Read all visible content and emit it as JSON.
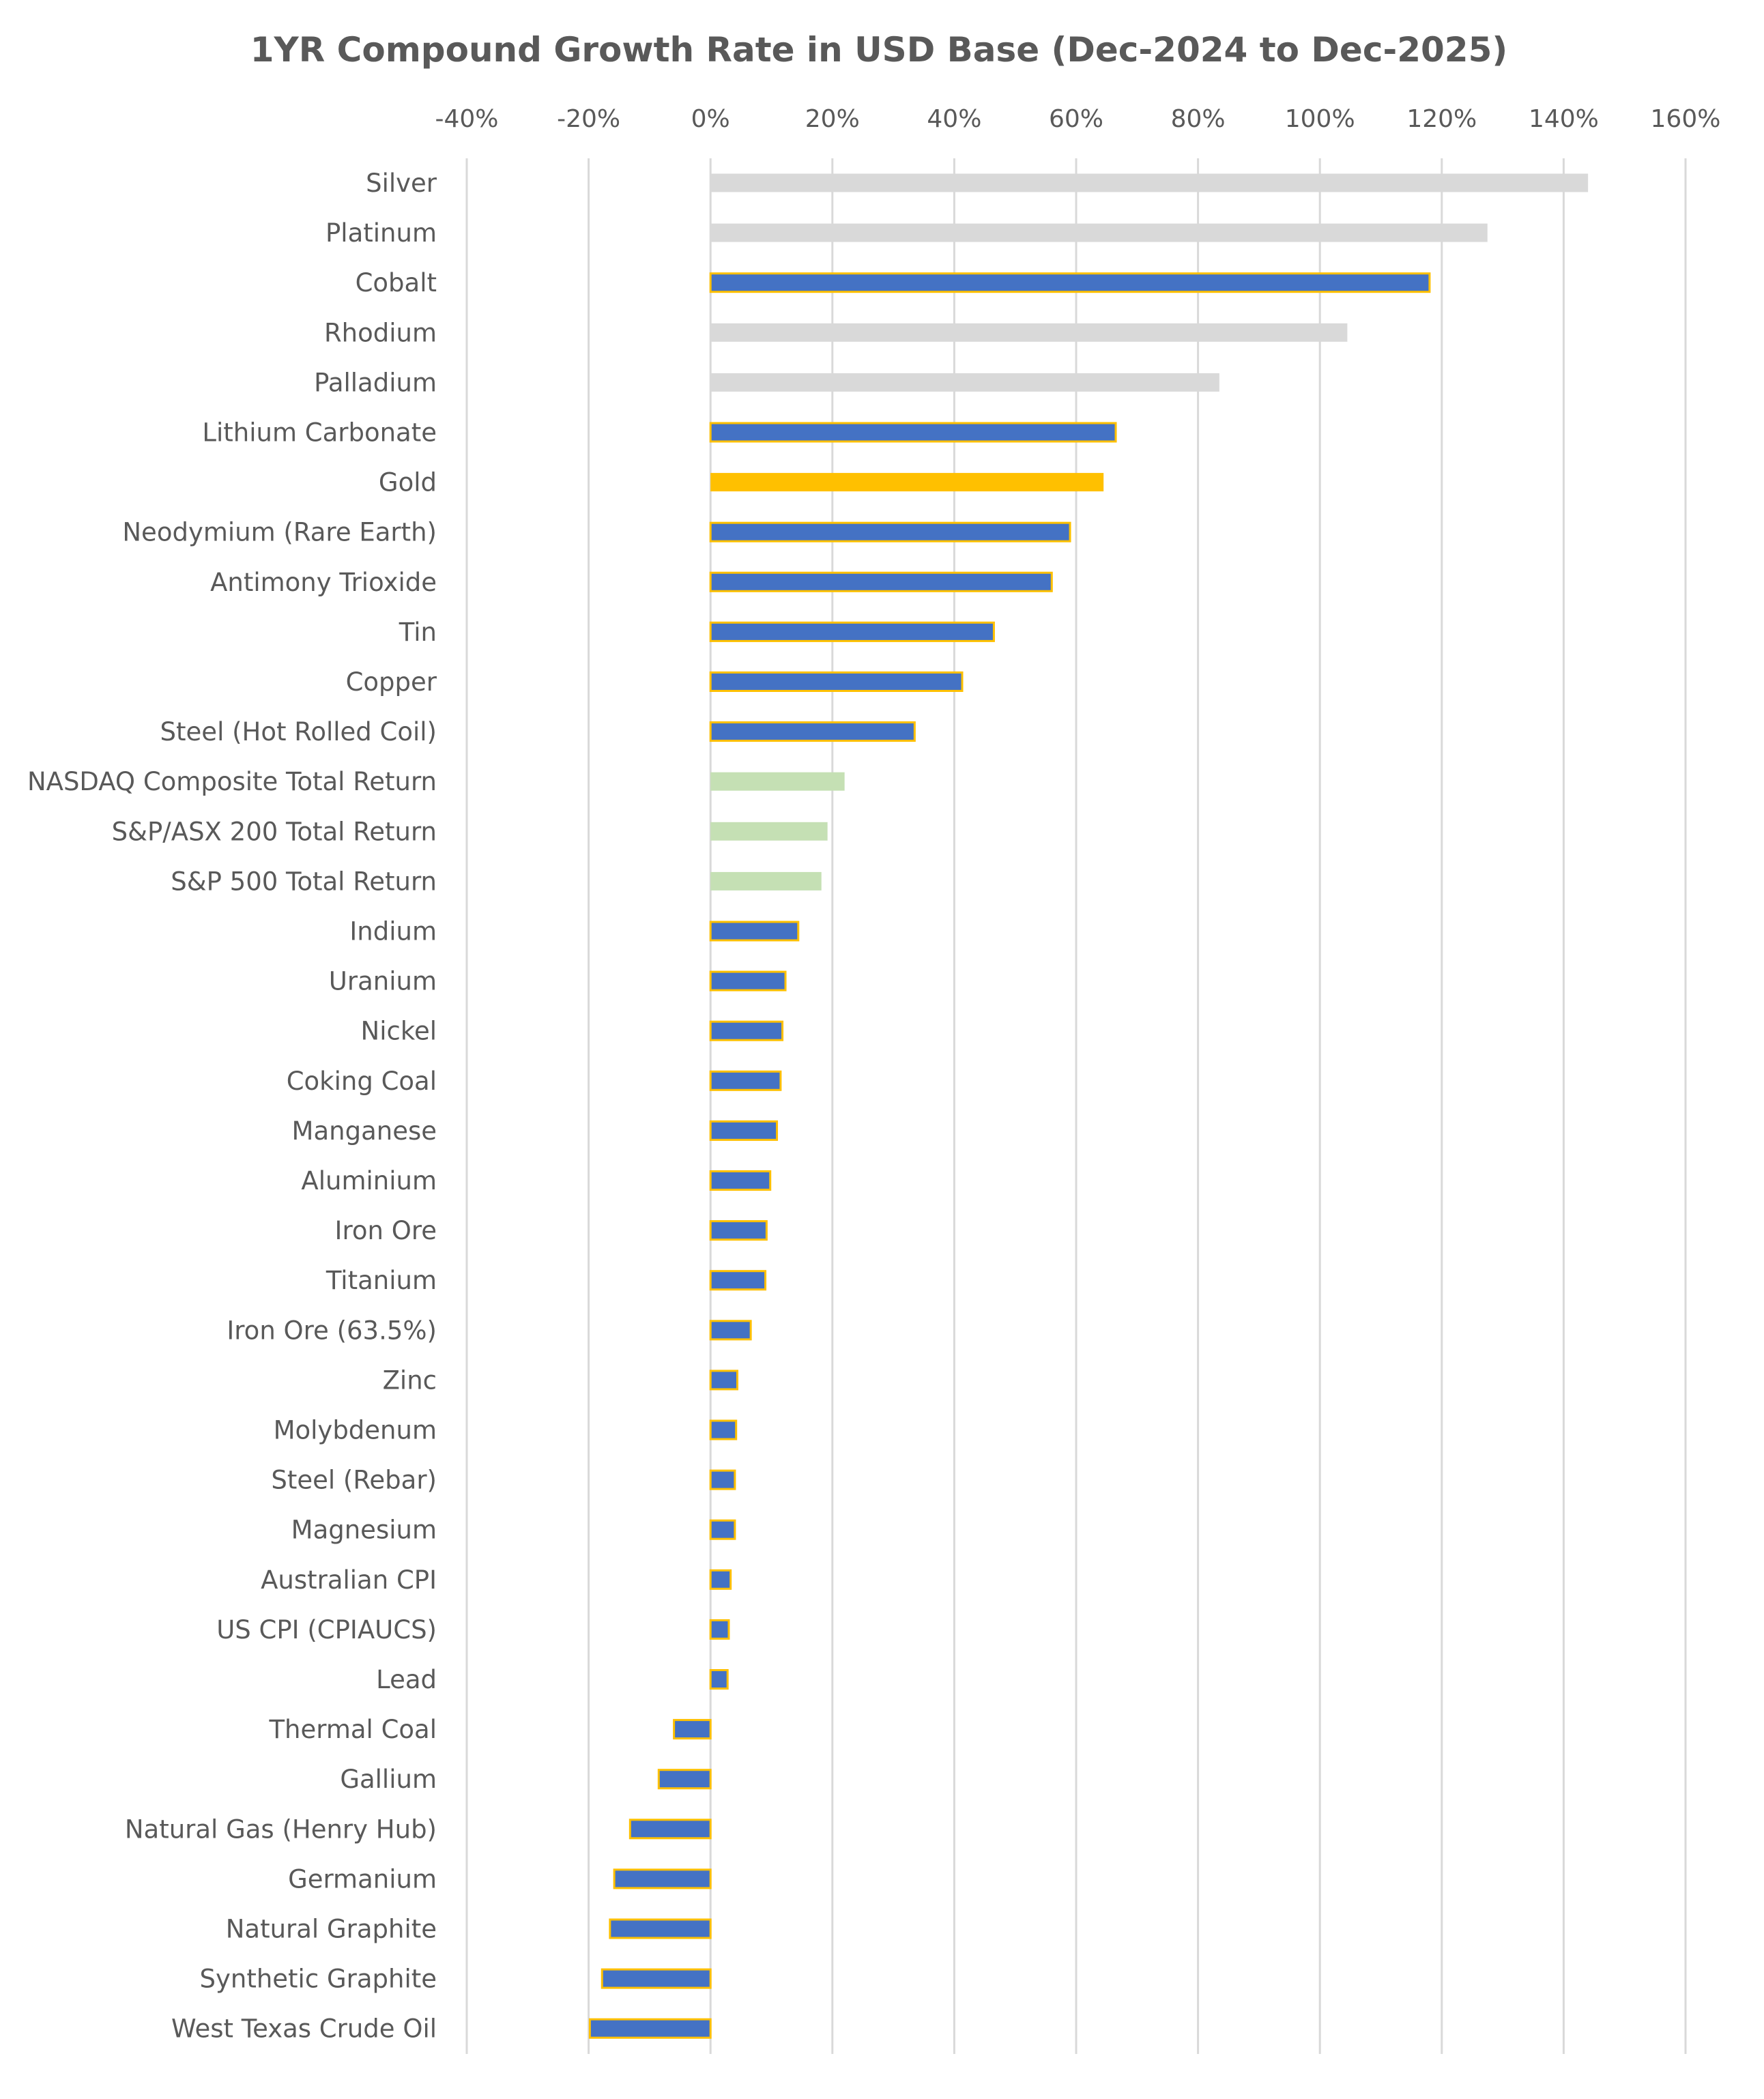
{
  "chart_data": {
    "type": "bar",
    "orientation": "horizontal",
    "title": "1YR Compound Growth Rate in USD Base (Dec-2024 to Dec-2025)",
    "xlabel": "",
    "ylabel": "",
    "xlim": [
      -40,
      160
    ],
    "x_ticks": [
      -40,
      -20,
      0,
      20,
      40,
      60,
      80,
      100,
      120,
      140,
      160
    ],
    "x_tick_labels": [
      "-40%",
      "-20%",
      "0%",
      "20%",
      "40%",
      "60%",
      "80%",
      "100%",
      "120%",
      "140%",
      "160%"
    ],
    "x_axis_position": "top",
    "grid": true,
    "legend": "none",
    "value_unit": "%",
    "colors": {
      "precious_metal": "#d9d9d9",
      "commodity": "#4472c4",
      "commodity_border": "#ffc000",
      "gold": "#ffc000",
      "equity_index": "#c5e0b4",
      "grid": "#d9d9d9",
      "text": "#595959"
    },
    "bars": [
      {
        "label": "Silver",
        "value": 144,
        "group": "precious_metal"
      },
      {
        "label": "Platinum",
        "value": 127.5,
        "group": "precious_metal"
      },
      {
        "label": "Cobalt",
        "value": 118,
        "group": "commodity"
      },
      {
        "label": "Rhodium",
        "value": 104.5,
        "group": "precious_metal"
      },
      {
        "label": "Palladium",
        "value": 83.5,
        "group": "precious_metal"
      },
      {
        "label": "Lithium Carbonate",
        "value": 66.5,
        "group": "commodity"
      },
      {
        "label": "Gold",
        "value": 64.5,
        "group": "gold"
      },
      {
        "label": "Neodymium (Rare Earth)",
        "value": 59,
        "group": "commodity"
      },
      {
        "label": "Antimony Trioxide",
        "value": 56,
        "group": "commodity"
      },
      {
        "label": "Tin",
        "value": 46.5,
        "group": "commodity"
      },
      {
        "label": "Copper",
        "value": 41.3,
        "group": "commodity"
      },
      {
        "label": "Steel (Hot Rolled Coil)",
        "value": 33.5,
        "group": "commodity"
      },
      {
        "label": "NASDAQ Composite Total Return",
        "value": 22,
        "group": "equity_index"
      },
      {
        "label": "S&P/ASX 200 Total Return",
        "value": 19.2,
        "group": "equity_index"
      },
      {
        "label": "S&P 500 Total Return",
        "value": 18.2,
        "group": "equity_index"
      },
      {
        "label": "Indium",
        "value": 14.4,
        "group": "commodity"
      },
      {
        "label": "Uranium",
        "value": 12.3,
        "group": "commodity"
      },
      {
        "label": "Nickel",
        "value": 11.8,
        "group": "commodity"
      },
      {
        "label": "Coking Coal",
        "value": 11.5,
        "group": "commodity"
      },
      {
        "label": "Manganese",
        "value": 10.9,
        "group": "commodity"
      },
      {
        "label": "Aluminium",
        "value": 9.8,
        "group": "commodity"
      },
      {
        "label": "Iron Ore",
        "value": 9.2,
        "group": "commodity"
      },
      {
        "label": "Titanium",
        "value": 9.0,
        "group": "commodity"
      },
      {
        "label": "Iron Ore (63.5%)",
        "value": 6.6,
        "group": "commodity"
      },
      {
        "label": "Zinc",
        "value": 4.4,
        "group": "commodity"
      },
      {
        "label": "Molybdenum",
        "value": 4.2,
        "group": "commodity"
      },
      {
        "label": "Steel (Rebar)",
        "value": 4.0,
        "group": "commodity"
      },
      {
        "label": "Magnesium",
        "value": 4.0,
        "group": "commodity"
      },
      {
        "label": "Australian CPI",
        "value": 3.3,
        "group": "commodity"
      },
      {
        "label": "US CPI (CPIAUCS)",
        "value": 3.0,
        "group": "commodity"
      },
      {
        "label": "Lead",
        "value": 2.8,
        "group": "commodity"
      },
      {
        "label": "Thermal Coal",
        "value": -6.0,
        "group": "commodity"
      },
      {
        "label": "Gallium",
        "value": -8.5,
        "group": "commodity"
      },
      {
        "label": "Natural Gas (Henry Hub)",
        "value": -13.2,
        "group": "commodity"
      },
      {
        "label": "Germanium",
        "value": -15.8,
        "group": "commodity"
      },
      {
        "label": "Natural Graphite",
        "value": -16.5,
        "group": "commodity"
      },
      {
        "label": "Synthetic Graphite",
        "value": -17.8,
        "group": "commodity"
      },
      {
        "label": "West Texas Crude Oil",
        "value": -19.8,
        "group": "commodity"
      }
    ]
  }
}
